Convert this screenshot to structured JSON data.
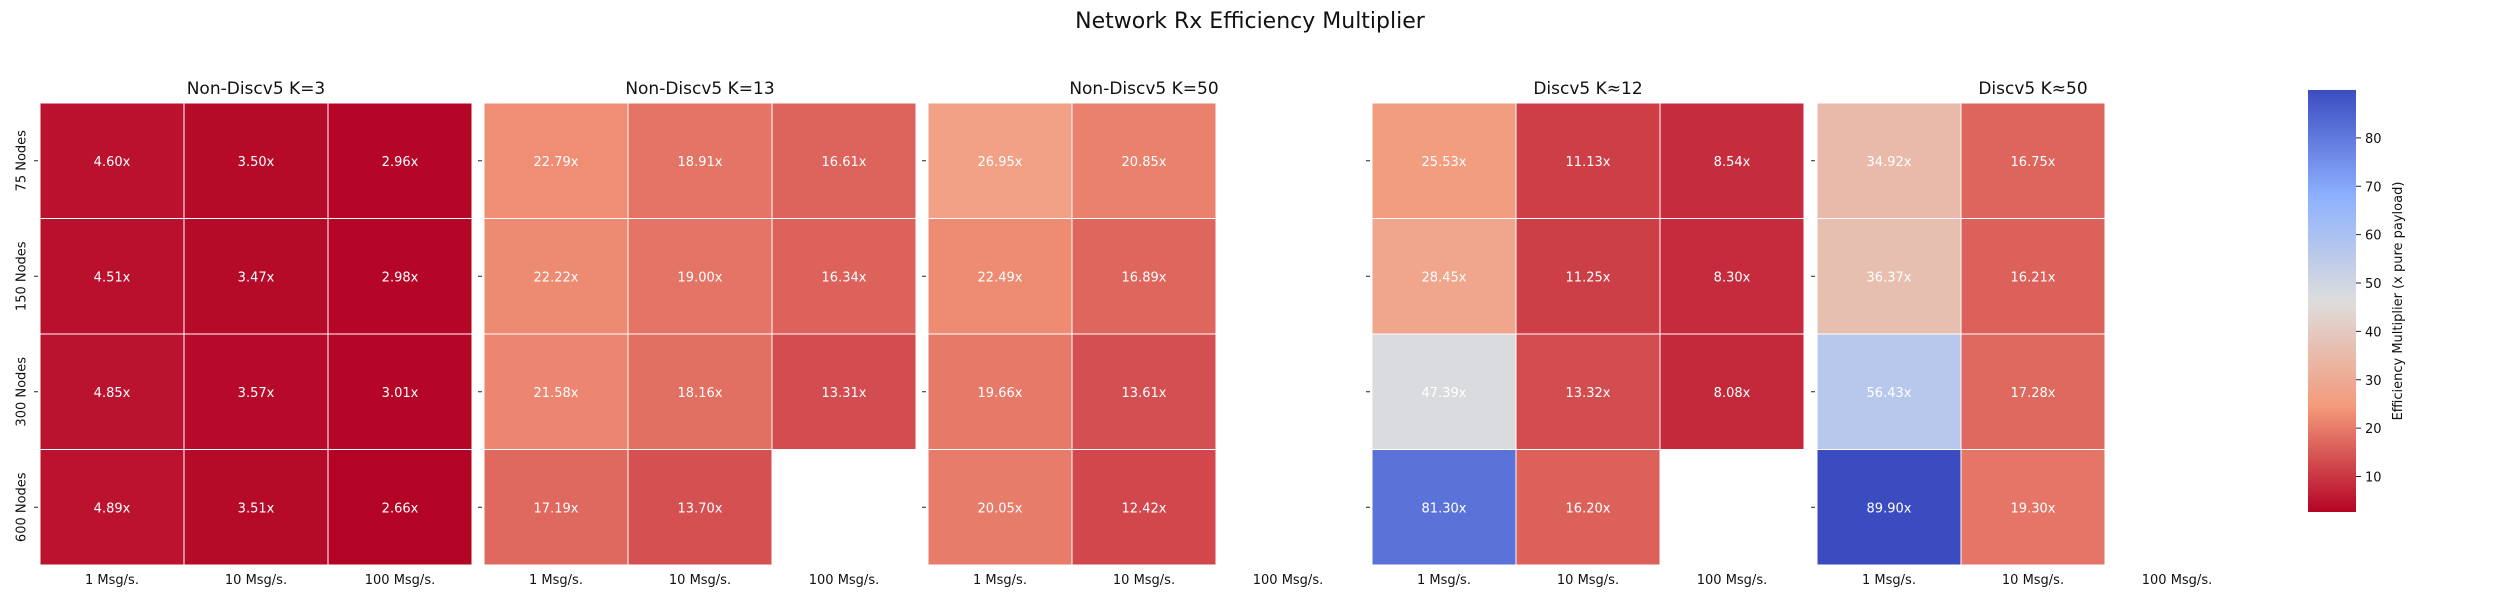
{
  "chart_data": {
    "type": "heatmap",
    "title": "Network Rx Efficiency Multiplier",
    "rows": [
      "75 Nodes",
      "150 Nodes",
      "300 Nodes",
      "600 Nodes"
    ],
    "cols": [
      "1 Msg/s.",
      "10 Msg/s.",
      "100 Msg/s."
    ],
    "value_suffix": "x",
    "colormap": "coolwarm_r",
    "vmin": 2.66,
    "vmax": 89.9,
    "colorbar": {
      "label": "Efficiency Multiplier (x pure payload)",
      "ticks": [
        10,
        20,
        30,
        40,
        50,
        60,
        70,
        80
      ]
    },
    "panels": [
      {
        "title": "Non-Discv5 K=3",
        "values": [
          [
            4.6,
            3.5,
            2.96
          ],
          [
            4.51,
            3.47,
            2.98
          ],
          [
            4.85,
            3.57,
            3.01
          ],
          [
            4.89,
            3.51,
            2.66
          ]
        ]
      },
      {
        "title": "Non-Discv5 K=13",
        "values": [
          [
            22.79,
            18.91,
            16.61
          ],
          [
            22.22,
            19.0,
            16.34
          ],
          [
            21.58,
            18.16,
            13.31
          ],
          [
            17.19,
            13.7,
            null
          ]
        ]
      },
      {
        "title": "Non-Discv5 K=50",
        "values": [
          [
            26.95,
            20.85,
            null
          ],
          [
            22.49,
            16.89,
            null
          ],
          [
            19.66,
            13.61,
            null
          ],
          [
            20.05,
            12.42,
            null
          ]
        ]
      },
      {
        "title": "Discv5 K≈12",
        "values": [
          [
            25.53,
            11.13,
            8.54
          ],
          [
            28.45,
            11.25,
            8.3
          ],
          [
            47.39,
            13.32,
            8.08
          ],
          [
            81.3,
            16.2,
            null
          ]
        ]
      },
      {
        "title": "Discv5 K≈50",
        "values": [
          [
            34.92,
            16.75,
            null
          ],
          [
            36.37,
            16.21,
            null
          ],
          [
            56.43,
            17.28,
            null
          ],
          [
            89.9,
            19.3,
            null
          ]
        ]
      }
    ]
  }
}
